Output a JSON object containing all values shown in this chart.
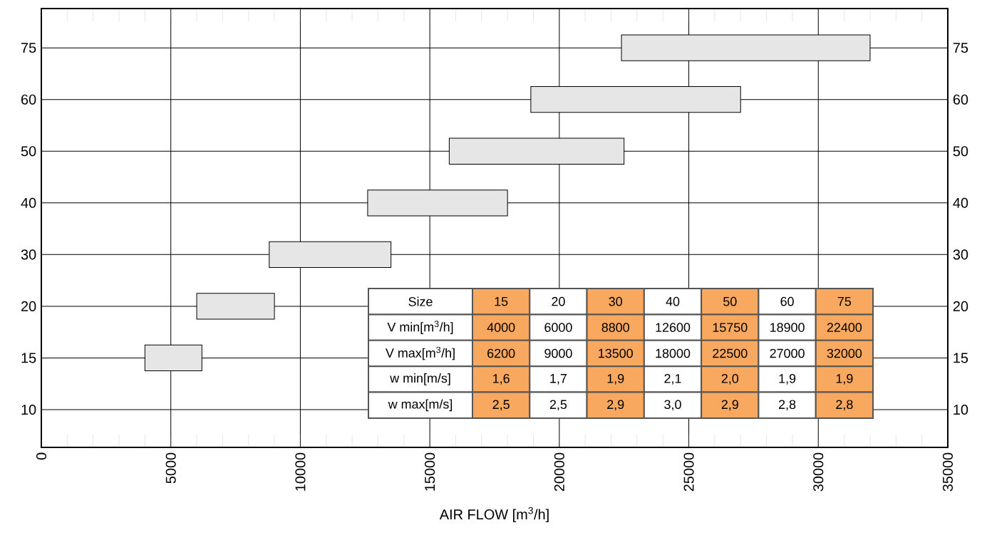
{
  "chart_data": {
    "type": "bar",
    "orientation": "horizontal",
    "categories": [
      "75",
      "60",
      "50",
      "40",
      "30",
      "20",
      "15",
      "10"
    ],
    "base": [
      22400,
      18900,
      15750,
      12600,
      8800,
      6000,
      4000,
      null
    ],
    "values": [
      9600,
      8100,
      6750,
      5400,
      4700,
      3000,
      2200,
      null
    ],
    "color": "#e6e6e6",
    "xlabel": "AIR FLOW [m$^{3}$/h]",
    "xlim": [
      0,
      35000
    ],
    "xticks": [
      0,
      5000,
      10000,
      15000,
      20000,
      25000,
      30000,
      35000
    ],
    "grid": true,
    "annotations": [
      "Size",
      "15",
      "20",
      "30",
      "40",
      "50",
      "60",
      "75",
      "V min[m$^{3}$/h]",
      "4000",
      "6000",
      "8800",
      "12600",
      "15750",
      "18900",
      "22400",
      "V max[m$^{3}$/h]",
      "6200",
      "9000",
      "13500",
      "18000",
      "22500",
      "27000",
      "32000",
      "w min[m/s]",
      "1,6",
      "1,7",
      "1,9",
      "2,1",
      "2,0",
      "1,9",
      "1,9",
      "w max[m/s]",
      "2,5",
      "2,5",
      "2,9",
      "3,0",
      "2,9",
      "2,8",
      "2,8"
    ]
  }
}
